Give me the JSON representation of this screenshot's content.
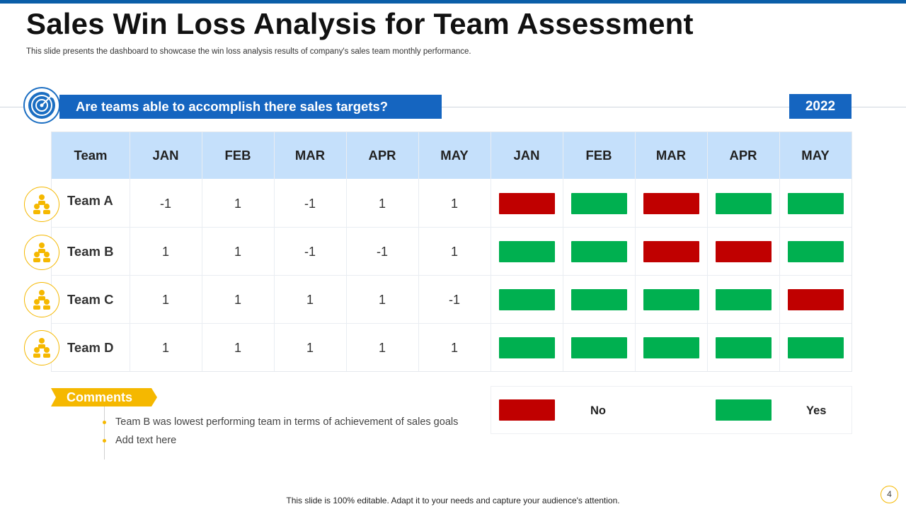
{
  "title": "Sales Win Loss Analysis for Team Assessment",
  "subtitle": "This slide presents the dashboard to showcase the win loss analysis results of company's sales team monthly performance.",
  "question": "Are teams able to accomplish there sales targets?",
  "year": "2022",
  "table": {
    "team_header": "Team",
    "value_months": [
      "JAN",
      "FEB",
      "MAR",
      "APR",
      "MAY"
    ],
    "status_months": [
      "JAN",
      "FEB",
      "MAR",
      "APR",
      "MAY"
    ],
    "rows": [
      {
        "team": "Team A",
        "values": [
          "-1",
          "1",
          "-1",
          "1",
          "1"
        ]
      },
      {
        "team": "Team B",
        "values": [
          "1",
          "1",
          "-1",
          "-1",
          "1"
        ]
      },
      {
        "team": "Team C",
        "values": [
          "1",
          "1",
          "1",
          "1",
          "-1"
        ]
      },
      {
        "team": "Team D",
        "values": [
          "1",
          "1",
          "1",
          "1",
          "1"
        ]
      }
    ]
  },
  "colors": {
    "no": "#c00000",
    "yes": "#00b050",
    "accent_blue": "#1565c0",
    "header_blue": "#c5e0fb",
    "accent_yellow": "#f5b800"
  },
  "icons": {
    "banner": "target-icon",
    "team": "team-group-icon"
  },
  "comments": {
    "label": "Comments",
    "items": [
      "Team B was lowest performing team in terms of achievement of sales goals",
      "Add text here"
    ]
  },
  "legend": {
    "no": "No",
    "yes": "Yes"
  },
  "footer": "This slide is 100% editable. Adapt it to your needs and capture your audience's attention.",
  "page_number": "4"
}
